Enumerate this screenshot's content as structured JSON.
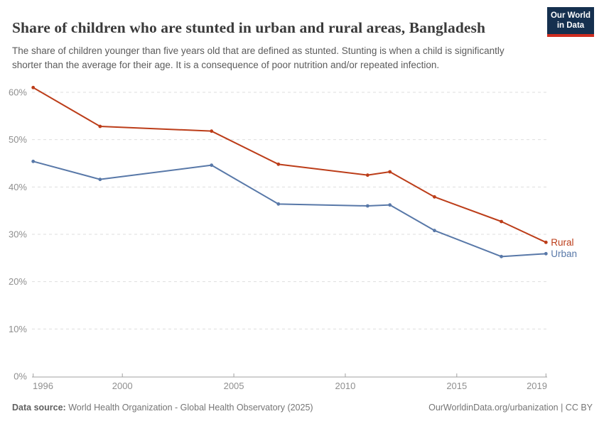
{
  "header": {
    "title": "Share of children who are stunted in urban and rural areas, Bangladesh",
    "subtitle": "The share of children younger than five years old that are defined as stunted. Stunting is when a child is significantly shorter than the average for their age. It is a consequence of poor nutrition and/or repeated infection."
  },
  "logo": {
    "line1": "Our World",
    "line2": "in Data",
    "bg_color": "#15304f",
    "bar_color": "#cf2d20"
  },
  "chart_data": {
    "type": "line",
    "title": "Share of children who are stunted in urban and rural areas, Bangladesh",
    "x": [
      1996,
      1999,
      2004,
      2007,
      2011,
      2012,
      2014,
      2017,
      2019
    ],
    "series": [
      {
        "name": "Rural",
        "color": "#bc3d19",
        "values": [
          61.0,
          52.8,
          51.8,
          44.8,
          42.5,
          43.2,
          37.9,
          32.7,
          28.3
        ]
      },
      {
        "name": "Urban",
        "color": "#5878a8",
        "values": [
          45.4,
          41.6,
          44.6,
          36.4,
          36.0,
          36.2,
          30.8,
          25.3,
          25.9
        ]
      }
    ],
    "xlabel": "",
    "ylabel": "",
    "ylim": [
      0,
      62
    ],
    "yticks": [
      0,
      10,
      20,
      30,
      40,
      50,
      60
    ],
    "ytick_suffix": "%",
    "xticks": [
      1996,
      2000,
      2005,
      2010,
      2015,
      2019
    ],
    "grid": "horizontal-dashed",
    "legend_position": "end-of-line",
    "grid_color": "#dedede",
    "axis_color": "#a1a1a1",
    "tick_label_color": "#8f8f8f"
  },
  "footer": {
    "source_label": "Data source:",
    "source_text": " World Health Organization - Global Health Observatory (2025)",
    "right_text": "OurWorldinData.org/urbanization | CC BY"
  }
}
